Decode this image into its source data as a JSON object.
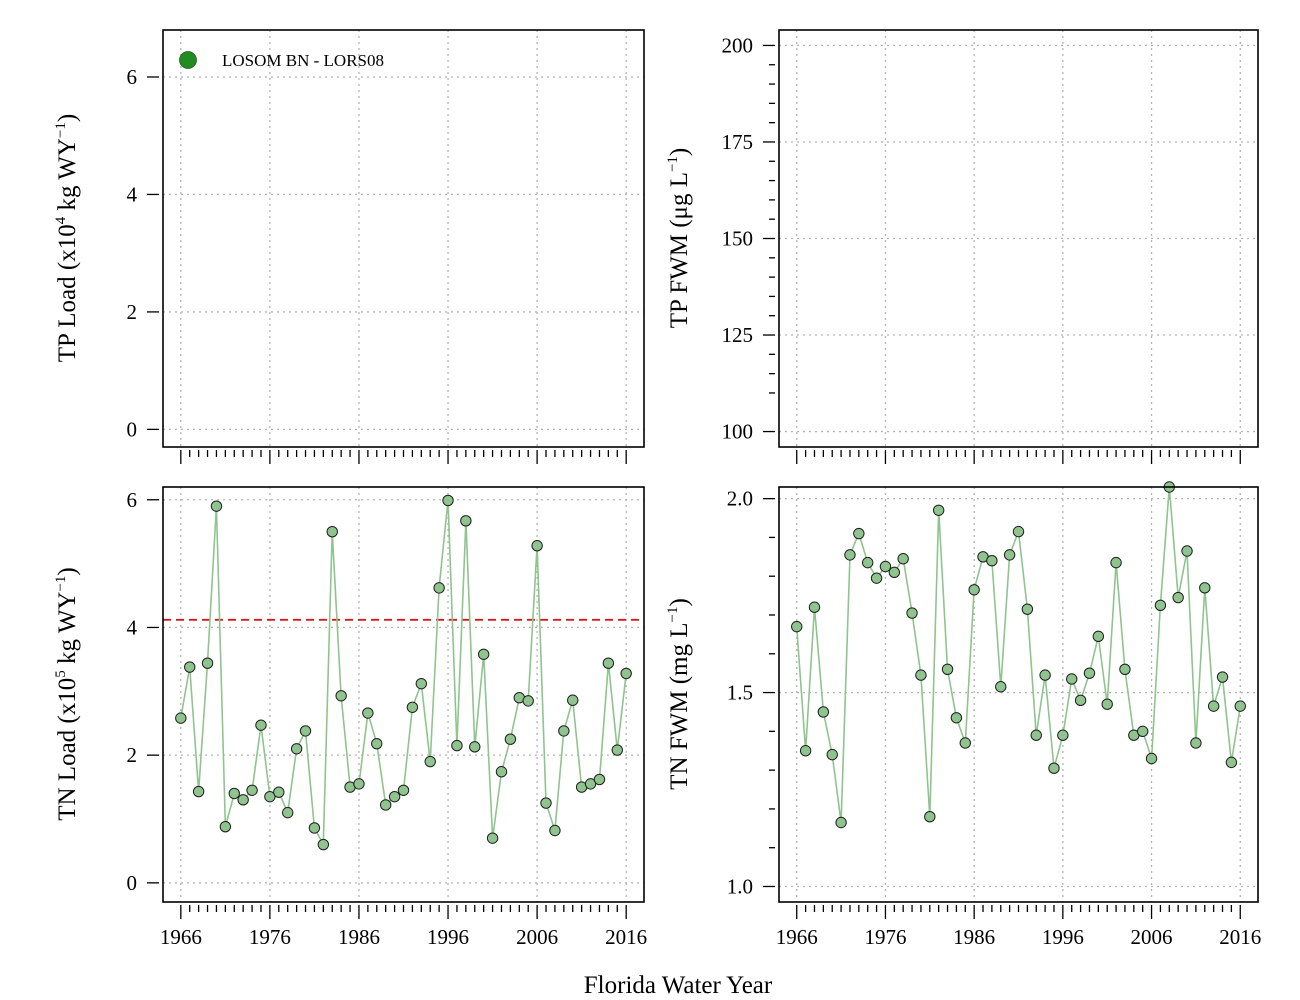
{
  "figure": {
    "xlabel": "Florida Water Year",
    "legend": {
      "label": "LOSOM BN - LORS08",
      "color": "#228B22",
      "placement": "top-left"
    }
  },
  "chart_data": [
    {
      "id": "tp_load",
      "type": "line",
      "title": "",
      "ylabel_main": "TP Load (x10",
      "ylabel_sup1": "4",
      "ylabel_mid": " kg WY",
      "ylabel_sup2": "−1",
      "ylabel_end": ")",
      "xlim": [
        1964,
        2018
      ],
      "ylim": [
        -0.3,
        6.8
      ],
      "yticks": [
        0,
        2,
        4,
        6
      ],
      "ytick_labels": [
        "0",
        "2",
        "4",
        "6"
      ],
      "minor_yticks": [],
      "xtick_labels_shown": false,
      "x": [],
      "values": []
    },
    {
      "id": "tp_fwm",
      "type": "line",
      "title": "",
      "ylabel_main": "TP FWM (μg L",
      "ylabel_sup": "−1",
      "ylabel_end": ")",
      "xlim": [
        1964,
        2018
      ],
      "ylim": [
        96,
        204
      ],
      "yticks": [
        100,
        125,
        150,
        175,
        200
      ],
      "ytick_labels": [
        "100",
        "125",
        "150",
        "175",
        "200"
      ],
      "minor_yticks": [
        110,
        115,
        120,
        130,
        135,
        140,
        145,
        155,
        160,
        165,
        170,
        180,
        185,
        190,
        195
      ],
      "xtick_labels_shown": false,
      "x": [],
      "values": []
    },
    {
      "id": "tn_load",
      "type": "line",
      "title": "",
      "ylabel_main": "TN Load (x10",
      "ylabel_sup1": "5",
      "ylabel_mid": " kg WY",
      "ylabel_sup2": "−1",
      "ylabel_end": ")",
      "xlim": [
        1964,
        2018
      ],
      "ylim": [
        -0.3,
        6.2
      ],
      "yticks": [
        0,
        2,
        4,
        6
      ],
      "ytick_labels": [
        "0",
        "2",
        "4",
        "6"
      ],
      "minor_yticks": [],
      "reference_line": 4.12,
      "xtick_labels_shown": true,
      "x": [
        1966,
        1967,
        1968,
        1969,
        1970,
        1971,
        1972,
        1973,
        1974,
        1975,
        1976,
        1977,
        1978,
        1979,
        1980,
        1981,
        1982,
        1983,
        1984,
        1985,
        1986,
        1987,
        1988,
        1989,
        1990,
        1991,
        1992,
        1993,
        1994,
        1995,
        1996,
        1997,
        1998,
        1999,
        2000,
        2001,
        2002,
        2003,
        2004,
        2005,
        2006,
        2007,
        2008,
        2009,
        2010,
        2011,
        2012,
        2013,
        2014,
        2015,
        2016
      ],
      "values": [
        2.58,
        3.38,
        1.43,
        3.44,
        5.9,
        0.88,
        1.4,
        1.3,
        1.45,
        2.47,
        1.35,
        1.42,
        1.1,
        2.1,
        2.38,
        0.86,
        0.6,
        5.5,
        2.93,
        1.5,
        1.55,
        2.66,
        2.18,
        1.22,
        1.35,
        1.45,
        2.75,
        3.12,
        1.9,
        4.62,
        5.99,
        2.15,
        5.67,
        2.13,
        3.58,
        0.7,
        1.74,
        2.25,
        2.9,
        2.85,
        5.28,
        1.25,
        0.82,
        2.38,
        2.86,
        1.5,
        1.55,
        1.62,
        3.44,
        2.08,
        3.28
      ]
    },
    {
      "id": "tn_fwm",
      "type": "line",
      "title": "",
      "ylabel_main": "TN FWM (mg L",
      "ylabel_sup": "−1",
      "ylabel_end": ")",
      "xlim": [
        1964,
        2018
      ],
      "ylim": [
        0.96,
        2.03
      ],
      "yticks": [
        1.0,
        1.5,
        2.0
      ],
      "ytick_labels": [
        "1.0",
        "1.5",
        "2.0"
      ],
      "minor_yticks": [
        1.1,
        1.2,
        1.3,
        1.4,
        1.6,
        1.7,
        1.8,
        1.9
      ],
      "xtick_labels_shown": true,
      "x": [
        1966,
        1967,
        1968,
        1969,
        1970,
        1971,
        1972,
        1973,
        1974,
        1975,
        1976,
        1977,
        1978,
        1979,
        1980,
        1981,
        1982,
        1983,
        1984,
        1985,
        1986,
        1987,
        1988,
        1989,
        1990,
        1991,
        1992,
        1993,
        1994,
        1995,
        1996,
        1997,
        1998,
        1999,
        2000,
        2001,
        2002,
        2003,
        2004,
        2005,
        2006,
        2007,
        2008,
        2009,
        2010,
        2011,
        2012,
        2013,
        2014,
        2015,
        2016
      ],
      "values": [
        1.67,
        1.35,
        1.72,
        1.45,
        1.34,
        1.165,
        1.855,
        1.91,
        1.835,
        1.795,
        1.825,
        1.81,
        1.845,
        1.705,
        1.545,
        1.18,
        1.97,
        1.56,
        1.435,
        1.37,
        1.765,
        1.85,
        1.84,
        1.515,
        1.855,
        1.915,
        1.715,
        1.39,
        1.545,
        1.305,
        1.39,
        1.535,
        1.48,
        1.55,
        1.645,
        1.47,
        1.835,
        1.56,
        1.39,
        1.4,
        1.33,
        1.725,
        2.03,
        1.745,
        1.865,
        1.37,
        1.77,
        1.465,
        1.54,
        1.32,
        1.465
      ]
    }
  ],
  "xticks": {
    "major": [
      1966,
      1976,
      1986,
      1996,
      2006,
      2016
    ],
    "labels": [
      "1966",
      "1976",
      "1986",
      "1996",
      "2006",
      "2016"
    ],
    "minor_step": 1
  },
  "colors": {
    "series_fill": "#8fc48f",
    "series_line": "#8fc48f",
    "point_stroke": "#1f1f1f",
    "reference_line": "#d7191c",
    "grid": "#b4b4b4"
  }
}
